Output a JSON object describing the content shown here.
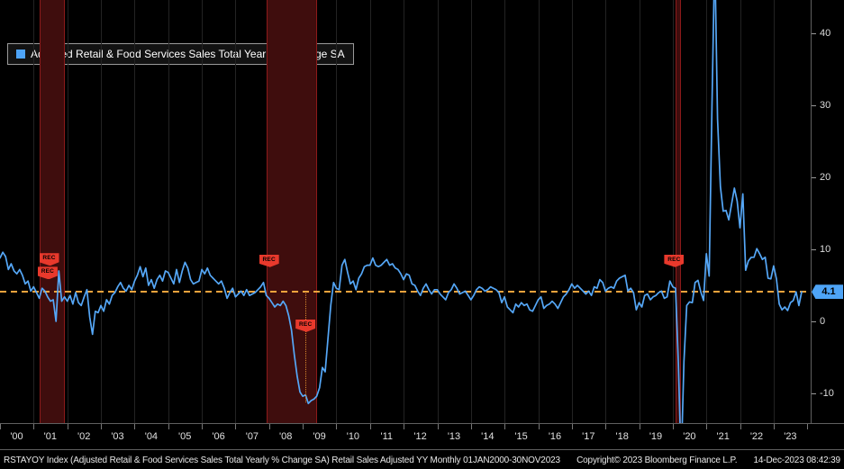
{
  "legend": {
    "label": "Adjusted Retail & Food Services Sales Total Yearly % Change SA",
    "swatch_color": "#4da3f7"
  },
  "last_value": {
    "label": "4.1",
    "color": "#4ea4f6"
  },
  "status_bar": {
    "left": "RSTAYOY Index (Adjusted Retail & Food Services Sales Total Yearly % Change SA) Retail Sales Adjusted YY  Monthly 01JAN2000-30NOV2023",
    "copyright": "Copyright© 2023 Bloomberg Finance L.P.",
    "timestamp": "14-Dec-2023 08:42:39"
  },
  "chart_data": {
    "type": "line",
    "title": "Adjusted Retail & Food Services Sales Total Yearly % Change SA",
    "xlabel": "",
    "ylabel": "%",
    "frequency": "monthly",
    "x_start": "Jan 2000",
    "x_end": "Nov 2023",
    "line_color": "#55a7f7",
    "ylim": [
      -14.1,
      44.6
    ],
    "y_ticks": [
      40,
      30,
      20,
      10,
      0,
      -10
    ],
    "x_tick_labels": [
      "'00",
      "'01",
      "'02",
      "'03",
      "'04",
      "'05",
      "'06",
      "'07",
      "'08",
      "'09",
      "'10",
      "'11",
      "'12",
      "'13",
      "'14",
      "'15",
      "'16",
      "'17",
      "'18",
      "'19",
      "'20",
      "'21",
      "'22",
      "'23"
    ],
    "reference_line": {
      "value": 4.1,
      "color": "#f2a33c",
      "style": "dashed"
    },
    "recession_bands": [
      {
        "start": 14,
        "end": 23,
        "label": "2001 recession"
      },
      {
        "start": 95,
        "end": 113,
        "label": "2008-2009 recession"
      },
      {
        "start": 241,
        "end": 243,
        "label": "2020 recession"
      }
    ],
    "rec_markers": [
      {
        "month": 17.5,
        "value": 8.6,
        "label": "REC"
      },
      {
        "month": 17.0,
        "value": 6.7,
        "label": "REC"
      },
      {
        "month": 96.0,
        "value": 8.4,
        "label": "REC"
      },
      {
        "month": 109.0,
        "value": -0.6,
        "label": "REC",
        "dropline": true
      },
      {
        "month": 240.5,
        "value": 8.4,
        "label": "REC"
      }
    ],
    "series": [
      {
        "name": "Adjusted Retail & Food Services Sales Total Yearly % Change SA",
        "values": [
          8.8,
          9.6,
          9.0,
          7.2,
          8.0,
          7.0,
          6.6,
          7.2,
          6.4,
          5.2,
          5.6,
          4.2,
          4.8,
          4.0,
          3.2,
          4.6,
          4.2,
          3.4,
          2.8,
          3.0,
          0.0,
          7.0,
          2.8,
          3.4,
          2.8,
          3.6,
          2.4,
          4.0,
          2.6,
          2.2,
          3.4,
          4.4,
          0.6,
          -1.8,
          1.4,
          1.2,
          2.2,
          1.4,
          3.0,
          2.4,
          3.6,
          4.0,
          4.8,
          5.4,
          4.6,
          4.2,
          5.0,
          4.4,
          5.6,
          6.4,
          7.6,
          6.2,
          7.4,
          5.0,
          5.8,
          4.6,
          5.8,
          6.4,
          5.6,
          7.0,
          6.8,
          6.0,
          5.2,
          7.2,
          5.4,
          7.0,
          8.2,
          7.4,
          5.8,
          5.2,
          5.4,
          5.6,
          7.2,
          6.6,
          7.4,
          6.4,
          6.0,
          5.6,
          5.2,
          5.6,
          4.6,
          3.2,
          4.0,
          4.6,
          3.4,
          3.8,
          4.2,
          3.6,
          4.4,
          3.6,
          3.8,
          4.0,
          4.4,
          4.8,
          5.4,
          3.6,
          3.2,
          2.6,
          2.0,
          2.4,
          2.2,
          2.8,
          2.2,
          0.8,
          -1.2,
          -4.6,
          -7.6,
          -9.8,
          -10.4,
          -10.2,
          -11.4,
          -11.0,
          -10.8,
          -10.4,
          -9.2,
          -6.4,
          -7.0,
          -2.4,
          2.2,
          5.4,
          4.6,
          4.4,
          7.8,
          8.6,
          6.8,
          5.2,
          5.6,
          4.4,
          6.0,
          6.6,
          7.6,
          7.8,
          7.8,
          8.8,
          7.8,
          7.6,
          7.8,
          8.2,
          8.6,
          7.8,
          8.0,
          7.4,
          7.2,
          6.6,
          5.8,
          6.6,
          6.4,
          5.2,
          5.0,
          4.2,
          3.6,
          4.6,
          5.2,
          4.4,
          3.8,
          4.4,
          4.4,
          3.8,
          3.4,
          3.0,
          4.0,
          4.4,
          5.2,
          4.6,
          3.8,
          4.0,
          4.2,
          3.6,
          3.0,
          3.6,
          4.4,
          4.8,
          4.6,
          4.2,
          4.4,
          4.8,
          4.6,
          4.4,
          4.0,
          2.6,
          3.4,
          2.0,
          1.6,
          1.2,
          2.4,
          2.0,
          2.6,
          2.2,
          2.4,
          1.6,
          1.4,
          2.2,
          3.0,
          3.4,
          1.8,
          2.2,
          2.4,
          2.8,
          2.4,
          1.8,
          2.6,
          3.4,
          3.8,
          4.4,
          5.2,
          4.6,
          5.0,
          4.6,
          4.2,
          3.8,
          4.2,
          3.6,
          4.8,
          4.6,
          5.8,
          5.4,
          4.2,
          4.6,
          4.8,
          4.6,
          5.6,
          6.0,
          6.2,
          6.4,
          4.2,
          4.6,
          4.0,
          1.6,
          2.6,
          2.0,
          3.6,
          3.8,
          3.0,
          3.4,
          3.6,
          4.0,
          4.2,
          3.2,
          3.4,
          5.6,
          4.8,
          4.6,
          -5.8,
          -19.9,
          -5.6,
          2.2,
          2.7,
          2.6,
          5.4,
          5.7,
          4.1,
          2.9,
          9.4,
          6.3,
          29.7,
          51.2,
          28.1,
          18.7,
          15.3,
          15.4,
          14.1,
          16.3,
          18.5,
          16.7,
          13.0,
          17.7,
          7.1,
          8.4,
          8.9,
          8.9,
          10.1,
          9.4,
          8.6,
          8.9,
          6.0,
          5.9,
          7.7,
          5.9,
          2.4,
          1.6,
          2.0,
          1.5,
          2.6,
          2.9,
          4.1,
          2.2,
          4.1
        ]
      }
    ]
  }
}
